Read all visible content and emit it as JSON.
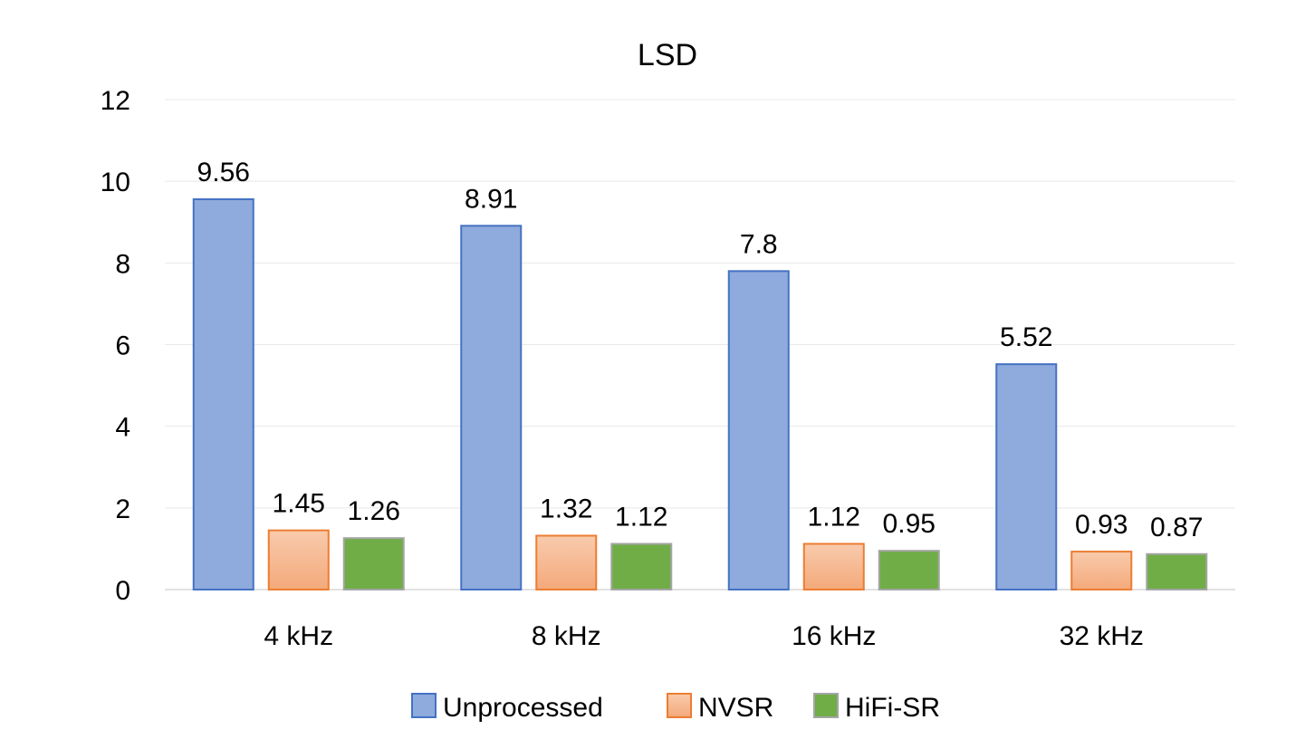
{
  "chart_data": {
    "type": "bar",
    "title": "LSD",
    "xlabel": "",
    "ylabel": "",
    "categories": [
      "4 kHz",
      "8 kHz",
      "16 kHz",
      "32 kHz"
    ],
    "series": [
      {
        "name": "Unprocessed",
        "values": [
          9.56,
          8.91,
          7.8,
          5.52
        ],
        "labels": [
          "9.56",
          "8.91",
          "7.8",
          "5.52"
        ],
        "color": "#8faadc",
        "stroke": "#4472c4"
      },
      {
        "name": "NVSR",
        "values": [
          1.45,
          1.32,
          1.12,
          0.93
        ],
        "labels": [
          "1.45",
          "1.32",
          "1.12",
          "0.93"
        ],
        "color": "#f4b183",
        "stroke": "#ed7d31"
      },
      {
        "name": "HiFi-SR",
        "values": [
          1.26,
          1.12,
          0.95,
          0.87
        ],
        "labels": [
          "1.26",
          "1.12",
          "0.95",
          "0.87"
        ],
        "color": "#70ad47",
        "stroke": "#a5a5a5"
      }
    ],
    "ylim": [
      0,
      12
    ],
    "yticks": [
      0,
      2,
      4,
      6,
      8,
      10,
      12
    ],
    "grid": true,
    "legend": "bottom"
  }
}
